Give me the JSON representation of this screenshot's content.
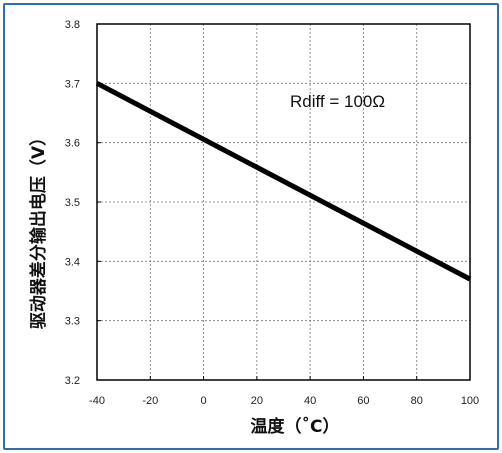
{
  "chart_data": {
    "type": "line",
    "xlabel": "温度（˚C）",
    "ylabel": "驱动器差分输出电压（V）",
    "annotation": "Rdiff = 100Ω",
    "xlim": [
      -40,
      100
    ],
    "ylim": [
      3.2,
      3.8
    ],
    "x_ticks": [
      "-40",
      "-20",
      "0",
      "20",
      "40",
      "60",
      "80",
      "100"
    ],
    "y_ticks": [
      "3.2",
      "3.3",
      "3.4",
      "3.5",
      "3.6",
      "3.7",
      "3.8"
    ],
    "grid": true,
    "series": [
      {
        "x": [
          -40,
          100
        ],
        "y": [
          3.7,
          3.37
        ],
        "color": "#000000"
      }
    ]
  }
}
